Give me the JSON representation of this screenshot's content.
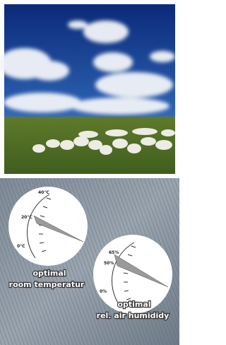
{
  "gauges": [
    {
      "scale_labels": [
        "40°C",
        "20°C",
        "0°C"
      ],
      "caption_lines": [
        "optimal",
        "room temperatur"
      ]
    },
    {
      "scale_labels": [
        "65%",
        "50%",
        "0%"
      ],
      "caption_lines": [
        "optimal",
        "rel. air humididy"
      ]
    }
  ]
}
